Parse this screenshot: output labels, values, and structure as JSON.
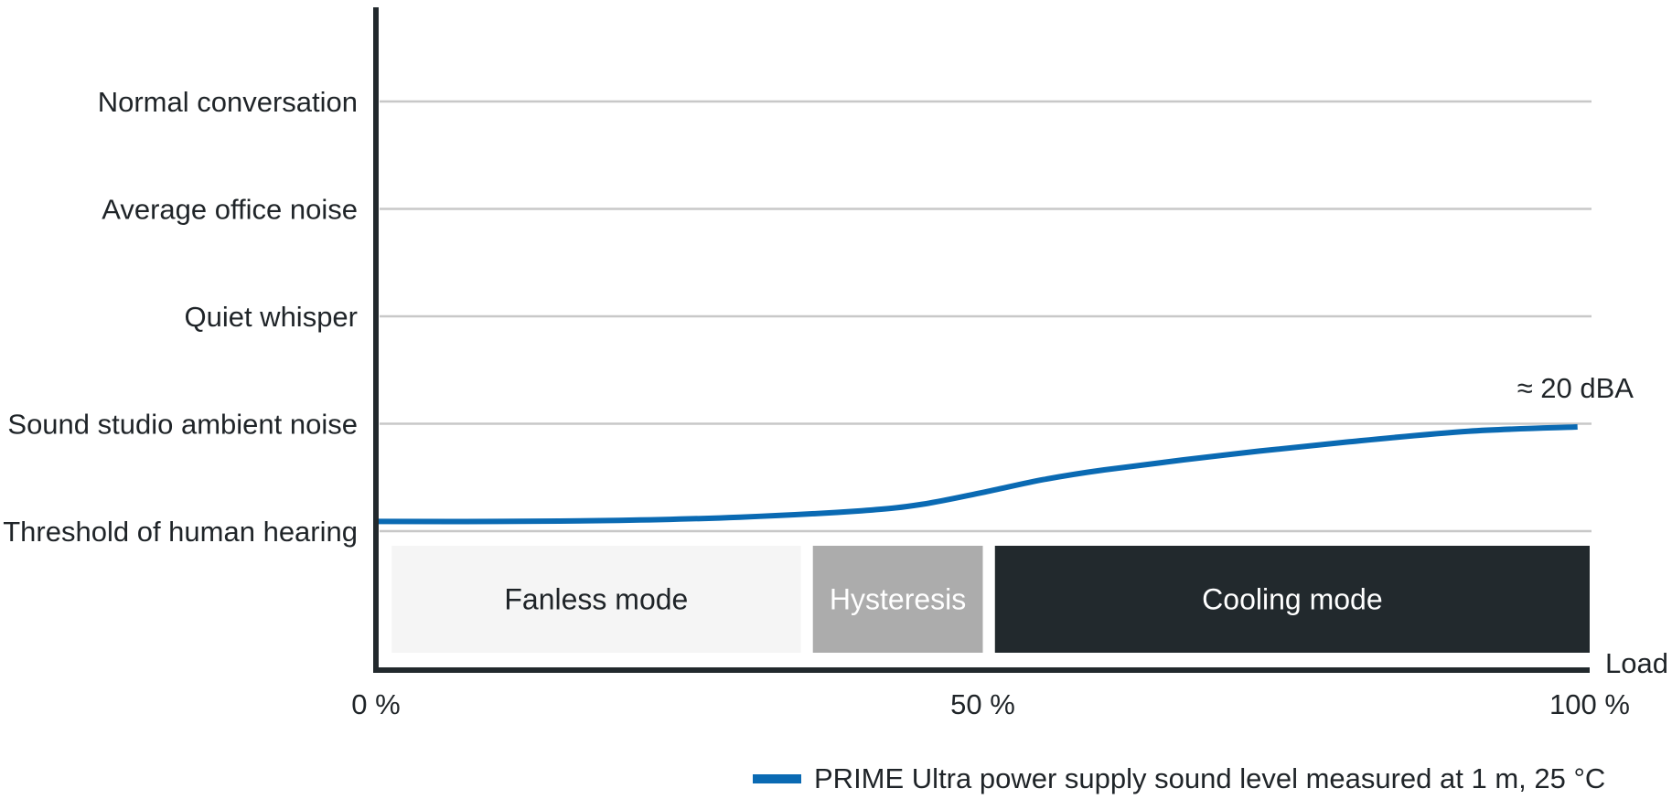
{
  "chart_data": {
    "type": "line",
    "xlabel": "Load",
    "x_ticks": [
      "0 %",
      "50 %",
      "100 %"
    ],
    "xlim": [
      0,
      100
    ],
    "y_levels": [
      "Threshold of human hearing",
      "Sound studio ambient noise",
      "Quiet whisper",
      "Average office noise",
      "Normal conversation"
    ],
    "grid": true,
    "series": [
      {
        "name": "PRIME Ultra power supply sound level measured at 1 m, 25 °C",
        "color": "#0a6ab3",
        "x": [
          0,
          10,
          20,
          30,
          40,
          45,
          50,
          55,
          60,
          70,
          80,
          90,
          99
        ],
        "y": [
          0.09,
          0.09,
          0.1,
          0.13,
          0.19,
          0.25,
          0.36,
          0.48,
          0.57,
          0.71,
          0.83,
          0.93,
          0.97
        ]
      }
    ],
    "annotation": {
      "text": "≈ 20 dBA",
      "at_x": 99
    },
    "zones": [
      {
        "label": "Fanless mode",
        "x_start": 1,
        "x_end": 35,
        "fill": "#f5f5f5",
        "text_color": "#1f2428"
      },
      {
        "label": "Hysteresis",
        "x_start": 36,
        "x_end": 50,
        "fill": "#acacac",
        "text_color": "#ffffff"
      },
      {
        "label": "Cooling mode",
        "x_start": 51,
        "x_end": 100,
        "fill": "#22292d",
        "text_color": "#ffffff"
      }
    ],
    "legend": {
      "position": "bottom-right"
    }
  }
}
